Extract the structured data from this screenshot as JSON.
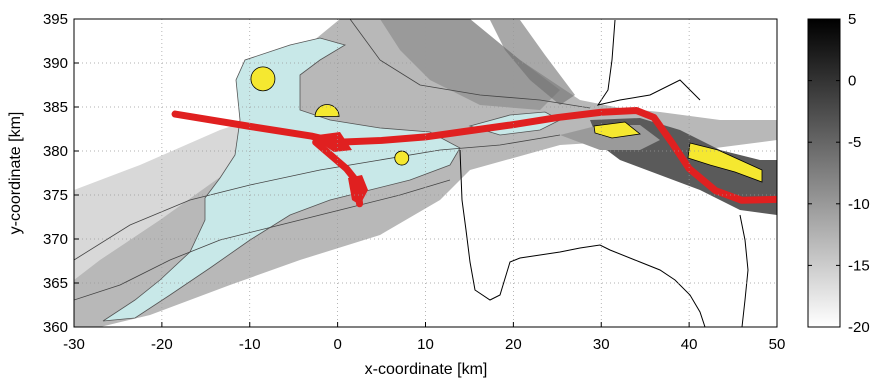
{
  "chart_data": {
    "type": "heatmap",
    "title": "",
    "xlabel": "x-coordinate [km]",
    "ylabel": "y-coordinate [km]",
    "xlim": [
      -30,
      50
    ],
    "ylim": [
      360,
      395
    ],
    "xticks": [
      -30,
      -20,
      -10,
      0,
      10,
      20,
      30,
      40,
      50
    ],
    "yticks": [
      360,
      365,
      370,
      375,
      380,
      385,
      390,
      395
    ],
    "grid": true,
    "colorbar": {
      "colormap": "grayscale (white = low, black = high)",
      "range": [
        -20,
        5
      ],
      "ticks": [
        5,
        0,
        -5,
        -10,
        -15,
        -20
      ]
    },
    "overlays": [
      {
        "name": "light-blue areas",
        "color": "#c8e8e8"
      },
      {
        "name": "red channel line",
        "color": "#e02020",
        "points": [
          [
            -18.5,
            384.2
          ],
          [
            -10,
            382.8
          ],
          [
            -3,
            381.7
          ],
          [
            0,
            381.0
          ],
          [
            5,
            381.2
          ],
          [
            10,
            381.6
          ],
          [
            15,
            382.3
          ],
          [
            20,
            383.0
          ],
          [
            25,
            383.8
          ],
          [
            30,
            384.4
          ],
          [
            34,
            384.6
          ],
          [
            36,
            383.8
          ],
          [
            38,
            381
          ],
          [
            40,
            378
          ],
          [
            43,
            375.5
          ],
          [
            46,
            374.4
          ],
          [
            50,
            374.5
          ]
        ]
      },
      {
        "name": "red branch",
        "color": "#e02020",
        "points": [
          [
            -2.5,
            381.0
          ],
          [
            1.0,
            378.0
          ],
          [
            2.2,
            376.5
          ],
          [
            2.5,
            374.0
          ]
        ]
      },
      {
        "name": "yellow circles",
        "color": "#f5e830",
        "points": [
          [
            -8.5,
            388.2
          ],
          [
            7.3,
            379.2
          ]
        ]
      },
      {
        "name": "yellow semicircle",
        "color": "#f5e830",
        "points": [
          [
            -1.2,
            384.6
          ]
        ]
      },
      {
        "name": "yellow polygons",
        "color": "#f5e830",
        "regions": [
          [
            29.5,
            382.5,
            35.5,
            380.5
          ],
          [
            40.5,
            380.0,
            48.5,
            376.0
          ]
        ]
      }
    ]
  }
}
